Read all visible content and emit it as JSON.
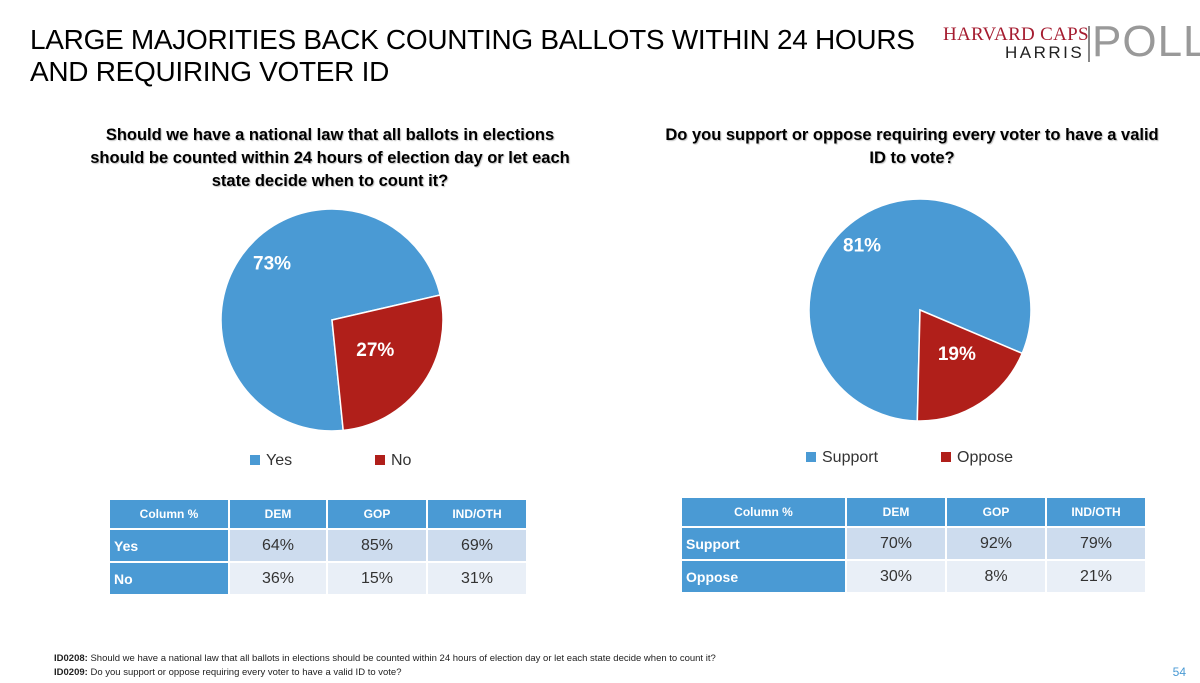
{
  "slide": {
    "title": "LARGE MAJORITIES BACK COUNTING BALLOTS WITHIN 24 HOURS AND REQUIRING VOTER ID",
    "page_number": "54"
  },
  "logo": {
    "line1": "HARVARD CAPS",
    "line2": "HARRIS",
    "line3": "POLL",
    "color_primary": "#a51c30"
  },
  "colors": {
    "blue": "#4a9ad4",
    "red": "#b01f1a"
  },
  "chart_data": [
    {
      "type": "pie",
      "title": "Should we have a national law that all ballots in elections should be counted within 24 hours of election day or let each state decide when to count it?",
      "categories": [
        "Yes",
        "No"
      ],
      "values": [
        73,
        27
      ],
      "labels": [
        "73%",
        "27%"
      ],
      "legend": "bottom",
      "table": {
        "header": [
          "Column %",
          "DEM",
          "GOP",
          "IND/OTH"
        ],
        "rows": [
          {
            "label": "Yes",
            "values": [
              "64%",
              "85%",
              "69%"
            ]
          },
          {
            "label": "No",
            "values": [
              "36%",
              "15%",
              "31%"
            ]
          }
        ]
      }
    },
    {
      "type": "pie",
      "title": "Do you support or oppose requiring every voter to have a valid ID to vote?",
      "categories": [
        "Support",
        "Oppose"
      ],
      "values": [
        81,
        19
      ],
      "labels": [
        "81%",
        "19%"
      ],
      "legend": "bottom",
      "table": {
        "header": [
          "Column %",
          "DEM",
          "GOP",
          "IND/OTH"
        ],
        "rows": [
          {
            "label": "Support",
            "values": [
              "70%",
              "92%",
              "79%"
            ]
          },
          {
            "label": "Oppose",
            "values": [
              "30%",
              "8%",
              "21%"
            ]
          }
        ]
      }
    }
  ],
  "footnotes": [
    {
      "id": "ID0208:",
      "text": "Should we have a national law that all ballots in elections should be counted within 24 hours of election day or let each state decide when to count it?"
    },
    {
      "id": "ID0209:",
      "text": "Do you support or oppose requiring every voter to have a valid ID to vote?"
    }
  ]
}
